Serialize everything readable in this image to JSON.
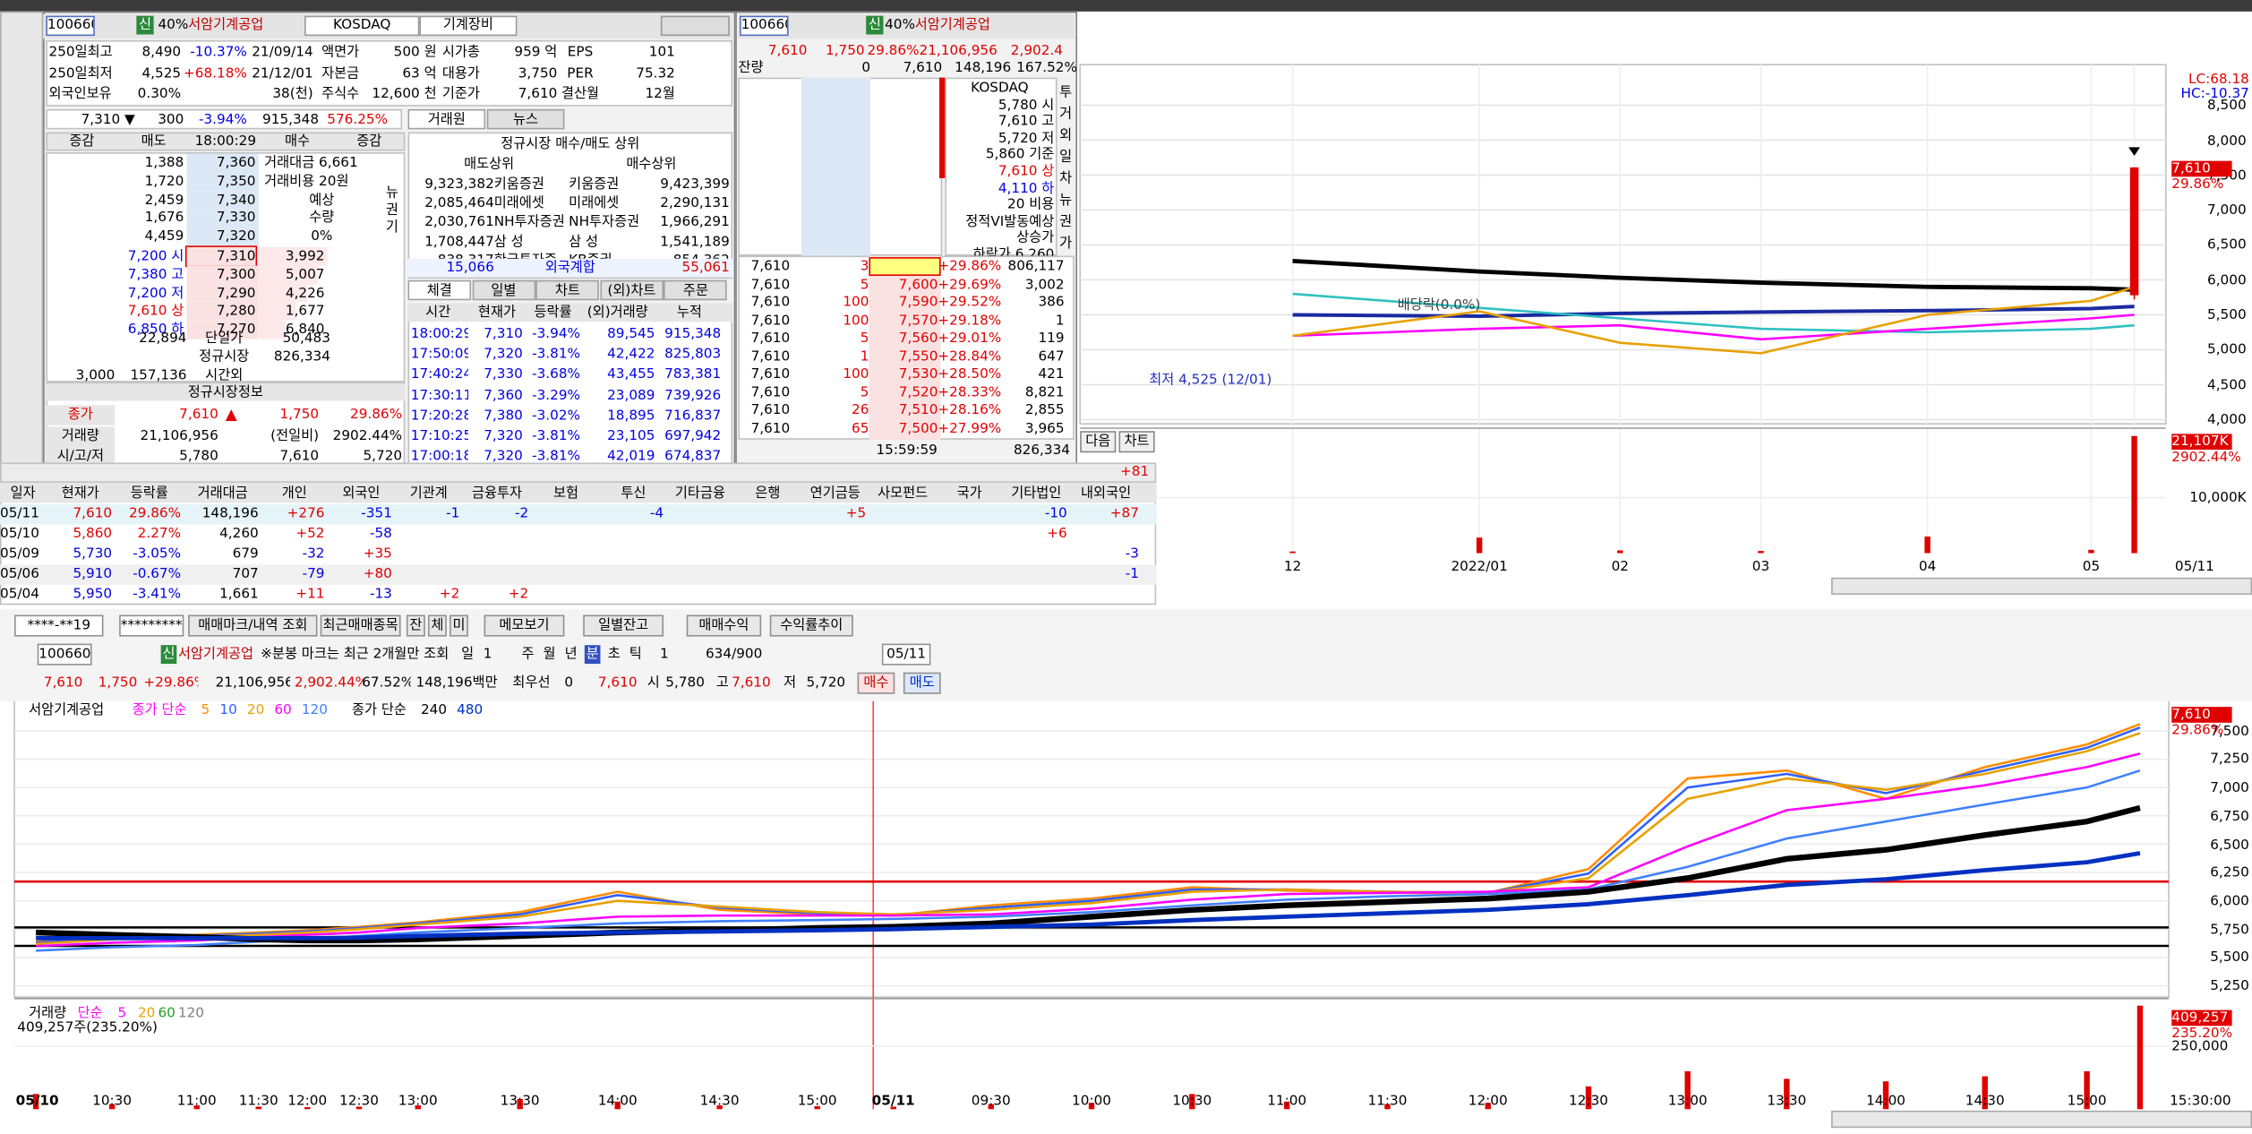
{
  "info": {
    "code": "100660",
    "credit": "신",
    "margin": "40%",
    "name": "서암기계공업",
    "market": "KOSDAQ",
    "sector": "기계장비",
    "grid": [
      [
        "250일최고",
        "8,490",
        "-10.37%",
        "21/09/14",
        "액면가",
        "500 원",
        "시가총",
        "959 억",
        "EPS",
        "101"
      ],
      [
        "250일최저",
        "4,525",
        "+68.18%",
        "21/12/01",
        "자본금",
        "63 억",
        "대용가",
        "3,750",
        "PER",
        "75.32"
      ],
      [
        "외국인보유",
        "0.30%",
        null,
        "38(천)",
        "주식수",
        "12,600 천",
        "기준가",
        "7,610",
        "결산월",
        "12월"
      ]
    ],
    "quote": [
      "7,310 ▼",
      "300",
      "-3.94%",
      "915,348",
      "576.25%"
    ]
  },
  "hoga": {
    "header": [
      "증감",
      "매도",
      "18:00:29",
      "매수",
      "증감"
    ],
    "sell": [
      [
        "1,388",
        "7,360"
      ],
      [
        "1,720",
        "7,350"
      ],
      [
        "2,459",
        "7,340"
      ],
      [
        "1,676",
        "7,330"
      ],
      [
        "4,459",
        "7,320"
      ]
    ],
    "notes": [
      "거래대금 6,661",
      "거래비용 20원",
      "예상",
      "수량",
      "0%"
    ],
    "side_tabs": [
      "뉴",
      "권",
      "기"
    ],
    "buy": [
      [
        "7,200 시",
        "7,310",
        "3,992"
      ],
      [
        "7,380 고",
        "7,300",
        "5,007"
      ],
      [
        "7,200 저",
        "7,290",
        "4,226"
      ],
      [
        "7,610 상",
        "7,280",
        "1,677"
      ],
      [
        "6,850 하",
        "7,270",
        "6,840"
      ]
    ],
    "summary": [
      [
        null,
        "22,894",
        "단일가",
        "50,483"
      ],
      [
        null,
        null,
        "정규시장",
        "826,334"
      ],
      [
        "3,000",
        "157,136",
        "시간외",
        null
      ]
    ],
    "regular": {
      "title": "정규시장정보",
      "rows": [
        [
          "종가",
          "7,610",
          "1,750",
          "29.86%"
        ],
        [
          "거래량",
          "21,106,956",
          "(전일비)",
          "2902.44%"
        ],
        [
          "시/고/저",
          "5,780",
          "7,610",
          "5,720"
        ]
      ]
    }
  },
  "broker": {
    "tabs": [
      "거래원",
      "뉴스"
    ],
    "title": "정규시장 매수/매도 상위",
    "header": [
      "매도상위",
      "매수상위"
    ],
    "rows": [
      [
        "9,323,382",
        "키움증권",
        "키움증권",
        "9,423,399"
      ],
      [
        "2,085,464",
        "미래에셋",
        "미래에셋",
        "2,290,131"
      ],
      [
        "2,030,761",
        "NH투자증권",
        "NH투자증권",
        "1,966,291"
      ],
      [
        "1,708,447",
        "삼 성",
        "삼 성",
        "1,541,189"
      ],
      [
        "838,317",
        "한국투자증",
        "KB증권",
        "854,362"
      ]
    ],
    "foreign": [
      "15,066",
      "외국계합",
      "55,061"
    ]
  },
  "ticks": {
    "tabs": [
      "체결",
      "일별",
      "차트",
      "(외)차트",
      "주문"
    ],
    "header": [
      "시간",
      "현재가",
      "등락률",
      "(외)거래량",
      "누적"
    ],
    "rows": [
      [
        "18:00:29",
        "7,310",
        "-3.94%",
        "89,545",
        "915,348"
      ],
      [
        "17:50:09",
        "7,320",
        "-3.81%",
        "42,422",
        "825,803"
      ],
      [
        "17:40:24",
        "7,330",
        "-3.68%",
        "43,455",
        "783,381"
      ],
      [
        "17:30:11",
        "7,360",
        "-3.29%",
        "23,089",
        "739,926"
      ],
      [
        "17:20:28",
        "7,380",
        "-3.02%",
        "18,895",
        "716,837"
      ],
      [
        "17:10:25",
        "7,320",
        "-3.81%",
        "23,105",
        "697,942"
      ],
      [
        "17:00:18",
        "7,320",
        "-3.81%",
        "42,019",
        "674,837"
      ]
    ]
  },
  "order": {
    "code": "100660",
    "credit": "신",
    "margin": "40%",
    "name": "서암기계공업",
    "quote": [
      "7,610",
      "1,750",
      "29.86%",
      "21,106,956",
      "2,902.4"
    ],
    "remain": [
      "잔량",
      "0",
      "7,610",
      "148,196",
      "167.52%"
    ],
    "right_box": [
      "KOSDAQ",
      "5,780 시",
      "7,610 고",
      "5,720 저",
      "5,860 기준",
      "7,610 상",
      "4,110 하",
      "20 비용",
      "정적VI발동예상",
      "상승가",
      "하락가 6,260"
    ],
    "side_tabs": [
      "투",
      "거",
      "외",
      "일",
      "차",
      "뉴",
      "권",
      "가"
    ],
    "rows": [
      [
        "7,610",
        "3",
        "7,610",
        "+29.86%",
        "806,117"
      ],
      [
        "7,610",
        "5",
        "7,600",
        "+29.69%",
        "3,002"
      ],
      [
        "7,610",
        "100",
        "7,590",
        "+29.52%",
        "386"
      ],
      [
        "7,610",
        "100",
        "7,570",
        "+29.18%",
        "1"
      ],
      [
        "7,610",
        "5",
        "7,560",
        "+29.01%",
        "119"
      ],
      [
        "7,610",
        "1",
        "7,550",
        "+28.84%",
        "647"
      ],
      [
        "7,610",
        "100",
        "7,530",
        "+28.50%",
        "421"
      ],
      [
        "7,610",
        "5",
        "7,520",
        "+28.33%",
        "8,821"
      ],
      [
        "7,610",
        "26",
        "7,510",
        "+28.16%",
        "2,855"
      ],
      [
        "7,610",
        "65",
        "7,500",
        "+27.99%",
        "3,965"
      ]
    ],
    "footer": [
      [
        "15:59:59",
        "826,334"
      ],
      [
        "157,136",
        "3,000",
        "시간외"
      ]
    ]
  },
  "investor": {
    "cut": "+81",
    "header": [
      "일자",
      "현재가",
      "등락률",
      "거래대금",
      "개인",
      "외국인",
      "기관계",
      "금융투자",
      "보험",
      "투신",
      "기타금융",
      "은행",
      "연기금등",
      "사모펀드",
      "국가",
      "기타법인",
      "내외국인"
    ],
    "rows": [
      [
        "05/11",
        "7,610",
        "29.86%",
        "148,196",
        "+276",
        "-351",
        "-1",
        "-2",
        null,
        "-4",
        null,
        null,
        "+5",
        null,
        null,
        "-10",
        "+87"
      ],
      [
        "05/10",
        "5,860",
        "2.27%",
        "4,260",
        "+52",
        "-58",
        null,
        null,
        null,
        null,
        null,
        null,
        null,
        null,
        null,
        "+6",
        null
      ],
      [
        "05/09",
        "5,730",
        "-3.05%",
        "679",
        "-32",
        "+35",
        null,
        null,
        null,
        null,
        null,
        null,
        null,
        null,
        null,
        null,
        "-3"
      ],
      [
        "05/06",
        "5,910",
        "-0.67%",
        "707",
        "-79",
        "+80",
        null,
        null,
        null,
        null,
        null,
        null,
        null,
        null,
        null,
        null,
        "-1"
      ],
      [
        "05/04",
        "5,950",
        "-3.41%",
        "1,661",
        "+11",
        "-13",
        "+2",
        "+2",
        null,
        null,
        null,
        null,
        null,
        null,
        null,
        null,
        null
      ]
    ]
  },
  "chart_buttons": [
    "다음",
    "차트"
  ],
  "toolbar": {
    "row1": [
      "****-**19",
      "*********",
      "매매마크/내역 조회",
      "최근매매종목",
      "잔",
      "체",
      "미",
      "메모보기",
      "일별잔고",
      "매매수익",
      "수익률추이"
    ],
    "row2": [
      "100660",
      "신",
      "서암기계공업",
      "※분봉 마크는 최근 2개월만 조회",
      "일",
      "1",
      "주",
      "월",
      "년",
      "분",
      "초",
      "틱",
      "1",
      "634/900",
      "05/11"
    ],
    "row3": [
      "7,610",
      "1,750",
      "+29.86%",
      "21,106,956",
      "2,902.44%",
      "67.52%",
      "148,196백만",
      "최우선",
      "0",
      "7,610",
      "시",
      "5,780",
      "고",
      "7,610",
      "저",
      "5,720",
      "매수",
      "매도"
    ]
  },
  "top_chart": {
    "type": "line",
    "lc": "LC:68.18",
    "hc": "HC:-10.37",
    "last_price": "7,610",
    "last_change": "29.86%",
    "annotations": [
      "최저 4,525 (12/01)",
      "배당락(0.0%)"
    ],
    "x": [
      "12",
      "2022/01",
      "02",
      "03",
      "04",
      "05",
      "05/11"
    ],
    "series": [
      {
        "color": "#000000",
        "values": [
          6270,
          6120,
          6030,
          5960,
          5900,
          5880,
          5860
        ]
      },
      {
        "color": "#1a2aa0",
        "values": [
          5500,
          5480,
          5520,
          5540,
          5560,
          5590,
          5620
        ]
      },
      {
        "color": "#30c0c0",
        "values": [
          5800,
          5600,
          5450,
          5300,
          5250,
          5300,
          5350
        ]
      },
      {
        "color": "#ff00ff",
        "values": [
          5200,
          5300,
          5350,
          5150,
          5300,
          5450,
          5500
        ]
      },
      {
        "color": "#e8a000",
        "values": [
          5200,
          5550,
          5100,
          4950,
          5500,
          5700,
          5900
        ]
      }
    ],
    "candle": {
      "open": 5780,
      "high": 7610,
      "low": 5720,
      "close": 7610
    },
    "ylim": [
      3940,
      9080
    ],
    "yticks": [
      {
        "value": 4000,
        "label": "4,000"
      },
      {
        "value": 4500,
        "label": "4,500"
      },
      {
        "value": 5000,
        "label": "5,000"
      },
      {
        "value": 5500,
        "label": "5,500"
      },
      {
        "value": 6000,
        "label": "6,000"
      },
      {
        "value": 6500,
        "label": "6,500"
      },
      {
        "value": 7000,
        "label": "7,000"
      },
      {
        "value": 7500,
        "label": "7,500"
      },
      {
        "value": 8000,
        "label": "8,000"
      },
      {
        "value": 8500,
        "label": "8,500"
      }
    ],
    "volume": {
      "values": [
        300,
        2800,
        500,
        400,
        3000,
        600,
        21107
      ],
      "ylim": [
        0,
        22000
      ],
      "yticks": [
        {
          "value": 10000,
          "label": "10,000K"
        }
      ],
      "last_label": "21,107K",
      "last_change": "2902.44%"
    }
  },
  "bottom_chart": {
    "type": "line",
    "title": "서암기계공업",
    "legend_groups": [
      "종가 단순",
      "종가 단순"
    ],
    "x": [
      "05/10",
      "10:30",
      "11:00",
      "11:30",
      "12:00",
      "12:30",
      "13:00",
      "13:30",
      "14:00",
      "14:30",
      "15:00",
      "05/11",
      "09:30",
      "10:00",
      "10:30",
      "11:00",
      "11:30",
      "12:00",
      "12:30",
      "13:00",
      "13:30",
      "14:00",
      "14:30",
      "15:00",
      "15:30:00"
    ],
    "series": [
      {
        "name": "5",
        "color": "#ff8c00",
        "values": [
          5640,
          5680,
          5700,
          5720,
          5740,
          5770,
          5810,
          5900,
          6080,
          5920,
          5880,
          5870,
          5960,
          6020,
          6120,
          6090,
          6070,
          6070,
          6280,
          7080,
          7150,
          6900,
          7180,
          7380,
          7560
        ]
      },
      {
        "name": "10",
        "color": "#3060ff",
        "values": [
          5630,
          5670,
          5690,
          5710,
          5730,
          5760,
          5800,
          5880,
          6050,
          5940,
          5890,
          5870,
          5940,
          6000,
          6100,
          6100,
          6080,
          6070,
          6240,
          7000,
          7120,
          6950,
          7150,
          7350,
          7530
        ]
      },
      {
        "name": "20",
        "color": "#e8a000",
        "values": [
          5620,
          5660,
          5680,
          5700,
          5720,
          5750,
          5790,
          5860,
          6000,
          5950,
          5900,
          5880,
          5920,
          5980,
          6080,
          6100,
          6080,
          6070,
          6200,
          6900,
          7080,
          6980,
          7120,
          7320,
          7480
        ]
      },
      {
        "name": "60",
        "color": "#ff00ff",
        "values": [
          5600,
          5630,
          5650,
          5680,
          5700,
          5720,
          5760,
          5800,
          5860,
          5870,
          5870,
          5870,
          5880,
          5930,
          6010,
          6060,
          6070,
          6080,
          6120,
          6480,
          6800,
          6900,
          7020,
          7180,
          7300
        ]
      },
      {
        "name": "120",
        "color": "#4080ff",
        "values": [
          5560,
          5590,
          5610,
          5640,
          5660,
          5690,
          5720,
          5760,
          5800,
          5820,
          5830,
          5840,
          5860,
          5900,
          5960,
          6010,
          6040,
          6060,
          6100,
          6300,
          6550,
          6700,
          6850,
          7000,
          7150
        ]
      },
      {
        "name": "240",
        "color": "#000000",
        "values": [
          5720,
          5700,
          5680,
          5660,
          5650,
          5650,
          5660,
          5690,
          5720,
          5740,
          5760,
          5770,
          5800,
          5860,
          5920,
          5960,
          5990,
          6020,
          6080,
          6200,
          6370,
          6450,
          6580,
          6700,
          6820
        ]
      },
      {
        "name": "480",
        "color": "#0030c0",
        "values": [
          5670,
          5670,
          5670,
          5670,
          5670,
          5675,
          5690,
          5710,
          5720,
          5730,
          5740,
          5750,
          5770,
          5790,
          5830,
          5860,
          5890,
          5920,
          5970,
          6050,
          6140,
          6190,
          6270,
          6340,
          6420
        ]
      }
    ],
    "hlines": [
      {
        "value": 6170,
        "color": "#e00000"
      },
      {
        "value": 5765,
        "color": "#000000"
      },
      {
        "value": 5602,
        "color": "#000000"
      }
    ],
    "ylim": [
      5150,
      7775
    ],
    "yticks": [
      {
        "value": 5250,
        "label": "5,250"
      },
      {
        "value": 5500,
        "label": "5,500"
      },
      {
        "value": 5750,
        "label": "5,750"
      },
      {
        "value": 6000,
        "label": "6,000"
      },
      {
        "value": 6250,
        "label": "6,250"
      },
      {
        "value": 6500,
        "label": "6,500"
      },
      {
        "value": 6750,
        "label": "6,750"
      },
      {
        "value": 7000,
        "label": "7,000"
      },
      {
        "value": 7250,
        "label": "7,250"
      },
      {
        "value": 7500,
        "label": "7,500"
      }
    ],
    "last_price": "7,610",
    "last_change": "29.86%",
    "volume": {
      "legend": [
        "거래량",
        "단순",
        "5",
        "20",
        "60",
        "120"
      ],
      "info": "409,257주(235.20%)",
      "color": "#e00000",
      "values": [
        60000,
        20000,
        15000,
        10000,
        8000,
        10000,
        15000,
        40000,
        30000,
        15000,
        12000,
        10000,
        20000,
        25000,
        60000,
        30000,
        20000,
        25000,
        90000,
        150000,
        120000,
        110000,
        130000,
        150000,
        409257
      ],
      "ylim": [
        0,
        426000
      ],
      "yticks": [
        {
          "value": 250000,
          "label": "250,000"
        }
      ],
      "last_label": "409,257",
      "last_change": "235.20%"
    }
  }
}
